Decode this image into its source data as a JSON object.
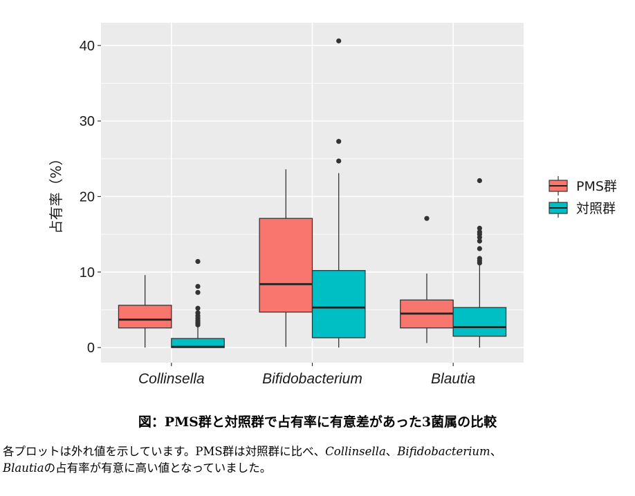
{
  "chart_data": {
    "type": "box",
    "categories": [
      "Collinsella",
      "Bifidobacterium",
      "Blautia"
    ],
    "ylabel": "占有率（%）",
    "xlabel": "",
    "ylim": [
      -2,
      43
    ],
    "yticks": [
      0,
      10,
      20,
      30,
      40
    ],
    "grid": true,
    "legend_position": "right",
    "series": [
      {
        "name": "PMS群",
        "color": "#F8766D",
        "boxes": [
          {
            "category": "Collinsella",
            "min": 0.0,
            "q1": 2.6,
            "median": 3.7,
            "q3": 5.6,
            "max": 9.6,
            "outliers": []
          },
          {
            "category": "Bifidobacterium",
            "min": 0.1,
            "q1": 4.7,
            "median": 8.4,
            "q3": 17.1,
            "max": 23.6,
            "outliers": []
          },
          {
            "category": "Blautia",
            "min": 0.6,
            "q1": 2.6,
            "median": 4.5,
            "q3": 6.3,
            "max": 9.8,
            "outliers": [
              17.1
            ]
          }
        ]
      },
      {
        "name": "対照群",
        "color": "#00BFC4",
        "boxes": [
          {
            "category": "Collinsella",
            "min": 0.0,
            "q1": 0.0,
            "median": 0.1,
            "q3": 1.2,
            "max": 2.8,
            "outliers": [
              3.0,
              3.2,
              3.4,
              3.6,
              3.9,
              4.2,
              4.6,
              5.2,
              7.3,
              8.1,
              11.4
            ]
          },
          {
            "category": "Bifidobacterium",
            "min": 0.0,
            "q1": 1.3,
            "median": 5.3,
            "q3": 10.2,
            "max": 23.1,
            "outliers": [
              24.7,
              27.3,
              40.6
            ]
          },
          {
            "category": "Blautia",
            "min": 0.0,
            "q1": 1.5,
            "median": 2.7,
            "q3": 5.3,
            "max": 10.9,
            "outliers": [
              11.2,
              11.5,
              11.8,
              13.1,
              14.1,
              14.6,
              15.0,
              15.3,
              15.8,
              22.1
            ]
          }
        ]
      }
    ]
  },
  "figure_title": "図：PMS群と対照群で占有率に有意差があった3菌属の比較",
  "caption": {
    "part1": "各プロットは外れ値を示しています。PMS群は対照群に比べ、",
    "genus1": "Collinsella",
    "sep1": "、",
    "genus2": "Bifidobacterium",
    "sep2": "、",
    "genus3": "Blautia",
    "part2": "の占有率が有意に高い値となっていました。"
  }
}
